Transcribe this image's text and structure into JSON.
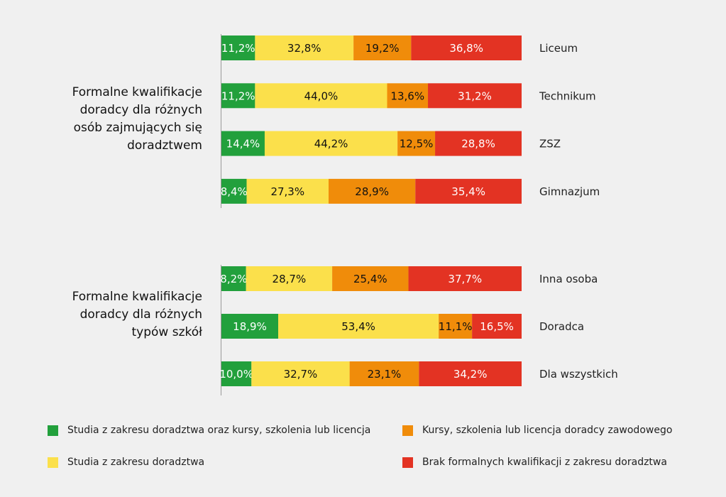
{
  "chart_data": {
    "type": "bar",
    "orientation": "horizontal",
    "stacked": true,
    "value_format": "percent with comma decimal",
    "series": [
      {
        "name": "Studia z zakresu doradztwa oraz kursy, szkolenia lub licencja",
        "color": "#22a03c"
      },
      {
        "name": "Studia z zakresu doradztwa",
        "color": "#fbe04b"
      },
      {
        "name": "Kursy, szkolenia lub licencja doradcy zawodowego",
        "color": "#f08c0a"
      },
      {
        "name": "Brak formalnych kwalifikacji z zakresu doradztwa",
        "color": "#e33323"
      }
    ],
    "groups": [
      {
        "label": "Formalne kwalifikacje doradcy dla różnych osób zajmujących się doradztwem",
        "label_lines": [
          "Formalne kwalifikacje",
          "doradcy dla różnych",
          "osób zajmujących się",
          "doradztwem"
        ],
        "bars": [
          {
            "category": "Liceum",
            "values": [
              11.2,
              32.8,
              19.2,
              36.8
            ],
            "labels": [
              "11,2%",
              "32,8%",
              "19,2%",
              "36,8%"
            ]
          },
          {
            "category": "Technikum",
            "values": [
              11.2,
              44.0,
              13.6,
              31.2
            ],
            "labels": [
              "11,2%",
              "44,0%",
              "13,6%",
              "31,2%"
            ]
          },
          {
            "category": "ZSZ",
            "values": [
              14.4,
              44.2,
              12.5,
              28.8
            ],
            "labels": [
              "14,4%",
              "44,2%",
              "12,5%",
              "28,8%"
            ]
          },
          {
            "category": "Gimnazjum",
            "values": [
              8.4,
              27.3,
              28.9,
              35.4
            ],
            "labels": [
              "8,4%",
              "27,3%",
              "28,9%",
              "35,4%"
            ]
          }
        ]
      },
      {
        "label": "Formalne kwalifikacje doradcy dla różnych typów szkół",
        "label_lines": [
          "Formalne kwalifikacje",
          "doradcy dla różnych",
          "typów szkół"
        ],
        "bars": [
          {
            "category": "Inna osoba",
            "values": [
              8.2,
              28.7,
              25.4,
              37.7
            ],
            "labels": [
              "8,2%",
              "28,7%",
              "25,4%",
              "37,7%"
            ]
          },
          {
            "category": "Doradca",
            "values": [
              18.9,
              53.4,
              11.1,
              16.5
            ],
            "labels": [
              "18,9%",
              "53,4%",
              "11,1%",
              "16,5%"
            ]
          },
          {
            "category": "Dla wszystkich",
            "values": [
              10.0,
              32.7,
              23.1,
              34.2
            ],
            "labels": [
              "10,0%",
              "32,7%",
              "23,1%",
              "34,2%"
            ]
          }
        ]
      }
    ]
  }
}
